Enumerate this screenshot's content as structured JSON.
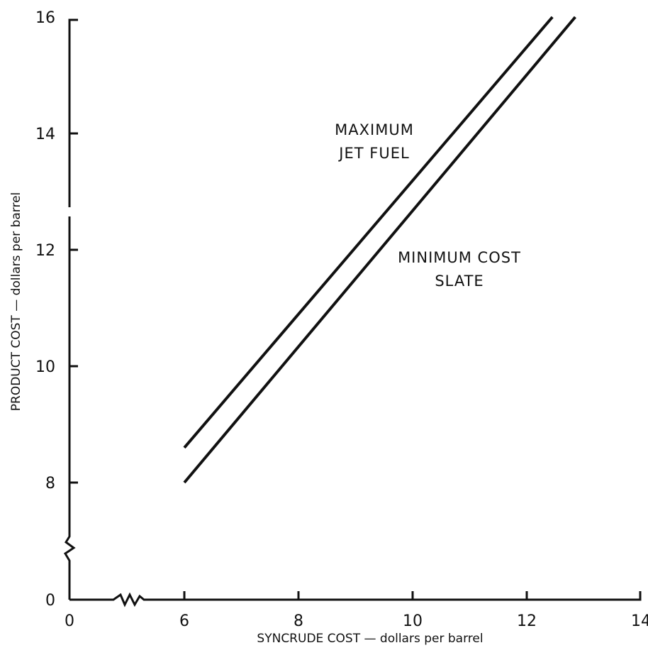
{
  "chart_data": {
    "type": "line",
    "title": "",
    "xlabel": "SYNCRUDE COST — dollars per barrel",
    "ylabel": "PRODUCT COST — dollars per barrel",
    "x_ticks": [
      0,
      6,
      8,
      10,
      12,
      14
    ],
    "x_tick_labels": [
      "0",
      "6",
      "8",
      "10",
      "12",
      "14"
    ],
    "y_ticks": [
      0,
      8,
      10,
      12,
      14,
      16
    ],
    "y_tick_labels": [
      "0",
      "8",
      "10",
      "12",
      "14",
      "16"
    ],
    "xlim": [
      0,
      14
    ],
    "ylim": [
      0,
      16
    ],
    "x_axis_break": true,
    "y_axis_break": true,
    "grid": false,
    "legend": "none",
    "series": [
      {
        "name": "MAXIMUM JET FUEL",
        "label_lines": [
          "MAXIMUM",
          "JET FUEL"
        ],
        "x": [
          6.0,
          12.45
        ],
        "y": [
          8.6,
          16.0
        ]
      },
      {
        "name": "MINIMUM COST SLATE",
        "label_lines": [
          "MINIMUM COST",
          "SLATE"
        ],
        "x": [
          6.0,
          12.85
        ],
        "y": [
          8.0,
          16.0
        ]
      }
    ]
  }
}
